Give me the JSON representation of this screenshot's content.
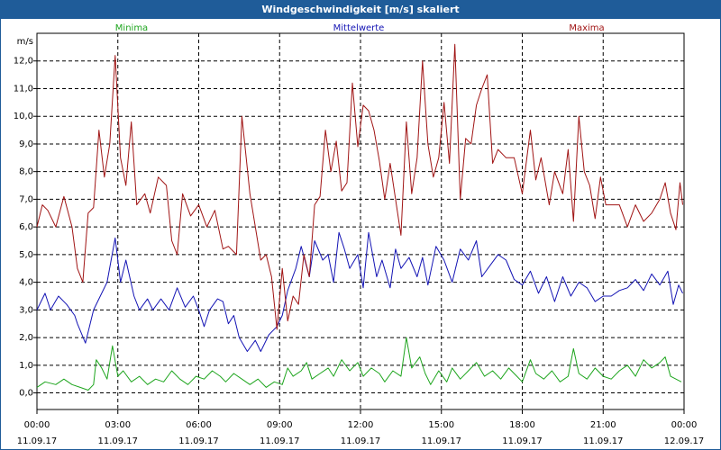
{
  "window": {
    "title": "Windgeschwindigkeit [m/s] skaliert"
  },
  "colors": {
    "minima": "#1ea51e",
    "mittelwerte": "#1414b4",
    "maxima": "#a01414",
    "title_bg": "#1f5c99"
  },
  "chart_data": {
    "type": "line",
    "title": "Windgeschwindigkeit [m/s] skaliert",
    "ylabel": "m/s",
    "xlabel": "",
    "ylim": [
      -0.6,
      13.0
    ],
    "yticks": [
      0.0,
      1.0,
      2.0,
      3.0,
      4.0,
      5.0,
      6.0,
      7.0,
      8.0,
      9.0,
      10.0,
      11.0,
      12.0
    ],
    "ytick_labels": [
      "0,0",
      "1,0",
      "2,0",
      "3,0",
      "4,0",
      "5,0",
      "6,0",
      "7,0",
      "8,0",
      "9,0",
      "10,0",
      "11,0",
      "12,0"
    ],
    "xlim": [
      0,
      24
    ],
    "xticks": [
      {
        "t": 0,
        "time": "00:00",
        "date": "11.09.17"
      },
      {
        "t": 3,
        "time": "03:00",
        "date": "11.09.17"
      },
      {
        "t": 6,
        "time": "06:00",
        "date": "11.09.17"
      },
      {
        "t": 9,
        "time": "09:00",
        "date": "11.09.17"
      },
      {
        "t": 12,
        "time": "12:00",
        "date": "11.09.17"
      },
      {
        "t": 15,
        "time": "15:00",
        "date": "11.09.17"
      },
      {
        "t": 18,
        "time": "18:00",
        "date": "11.09.17"
      },
      {
        "t": 21,
        "time": "21:00",
        "date": "11.09.17"
      },
      {
        "t": 24,
        "time": "00:00",
        "date": "12.09.17"
      }
    ],
    "grid": true,
    "legend": "top-center",
    "series": [
      {
        "name": "Minima",
        "color": "#1ea51e",
        "points": [
          [
            0,
            0.2
          ],
          [
            0.3,
            0.4
          ],
          [
            0.7,
            0.3
          ],
          [
            1.0,
            0.5
          ],
          [
            1.3,
            0.3
          ],
          [
            1.6,
            0.2
          ],
          [
            1.9,
            0.1
          ],
          [
            2.1,
            0.3
          ],
          [
            2.2,
            1.2
          ],
          [
            2.4,
            0.9
          ],
          [
            2.6,
            0.5
          ],
          [
            2.8,
            1.7
          ],
          [
            3.0,
            0.6
          ],
          [
            3.2,
            0.8
          ],
          [
            3.5,
            0.4
          ],
          [
            3.8,
            0.6
          ],
          [
            4.1,
            0.3
          ],
          [
            4.4,
            0.5
          ],
          [
            4.7,
            0.4
          ],
          [
            5.0,
            0.8
          ],
          [
            5.3,
            0.5
          ],
          [
            5.6,
            0.3
          ],
          [
            5.9,
            0.6
          ],
          [
            6.2,
            0.5
          ],
          [
            6.5,
            0.8
          ],
          [
            6.8,
            0.6
          ],
          [
            7.0,
            0.4
          ],
          [
            7.3,
            0.7
          ],
          [
            7.6,
            0.5
          ],
          [
            7.9,
            0.3
          ],
          [
            8.2,
            0.5
          ],
          [
            8.5,
            0.2
          ],
          [
            8.8,
            0.4
          ],
          [
            9.1,
            0.3
          ],
          [
            9.3,
            0.9
          ],
          [
            9.5,
            0.6
          ],
          [
            9.8,
            0.8
          ],
          [
            10.0,
            1.1
          ],
          [
            10.2,
            0.5
          ],
          [
            10.5,
            0.7
          ],
          [
            10.8,
            0.9
          ],
          [
            11.0,
            0.6
          ],
          [
            11.3,
            1.2
          ],
          [
            11.6,
            0.8
          ],
          [
            11.9,
            1.1
          ],
          [
            12.1,
            0.6
          ],
          [
            12.4,
            0.9
          ],
          [
            12.7,
            0.7
          ],
          [
            12.9,
            0.4
          ],
          [
            13.2,
            0.8
          ],
          [
            13.5,
            0.6
          ],
          [
            13.7,
            2.0
          ],
          [
            13.9,
            0.9
          ],
          [
            14.2,
            1.3
          ],
          [
            14.4,
            0.7
          ],
          [
            14.6,
            0.3
          ],
          [
            14.9,
            0.8
          ],
          [
            15.2,
            0.4
          ],
          [
            15.4,
            0.9
          ],
          [
            15.7,
            0.5
          ],
          [
            16.0,
            0.8
          ],
          [
            16.3,
            1.1
          ],
          [
            16.6,
            0.6
          ],
          [
            16.9,
            0.8
          ],
          [
            17.2,
            0.5
          ],
          [
            17.5,
            0.9
          ],
          [
            17.8,
            0.6
          ],
          [
            18.0,
            0.4
          ],
          [
            18.3,
            1.2
          ],
          [
            18.5,
            0.7
          ],
          [
            18.8,
            0.5
          ],
          [
            19.1,
            0.8
          ],
          [
            19.4,
            0.4
          ],
          [
            19.7,
            0.6
          ],
          [
            19.9,
            1.6
          ],
          [
            20.1,
            0.7
          ],
          [
            20.4,
            0.5
          ],
          [
            20.7,
            0.9
          ],
          [
            21.0,
            0.6
          ],
          [
            21.3,
            0.5
          ],
          [
            21.6,
            0.8
          ],
          [
            21.9,
            1.0
          ],
          [
            22.2,
            0.6
          ],
          [
            22.5,
            1.2
          ],
          [
            22.8,
            0.9
          ],
          [
            23.1,
            1.1
          ],
          [
            23.3,
            1.3
          ],
          [
            23.5,
            0.6
          ],
          [
            23.7,
            0.5
          ],
          [
            23.9,
            0.4
          ]
        ]
      },
      {
        "name": "Mittelwerte",
        "color": "#1414b4",
        "points": [
          [
            0,
            3.0
          ],
          [
            0.3,
            3.6
          ],
          [
            0.5,
            3.0
          ],
          [
            0.8,
            3.5
          ],
          [
            1.1,
            3.2
          ],
          [
            1.4,
            2.8
          ],
          [
            1.5,
            2.5
          ],
          [
            1.8,
            1.8
          ],
          [
            2.1,
            3.0
          ],
          [
            2.4,
            3.6
          ],
          [
            2.6,
            4.0
          ],
          [
            2.9,
            5.6
          ],
          [
            3.1,
            4.0
          ],
          [
            3.3,
            4.8
          ],
          [
            3.6,
            3.5
          ],
          [
            3.8,
            3.0
          ],
          [
            4.1,
            3.4
          ],
          [
            4.3,
            3.0
          ],
          [
            4.6,
            3.4
          ],
          [
            4.9,
            3.0
          ],
          [
            5.2,
            3.8
          ],
          [
            5.5,
            3.1
          ],
          [
            5.8,
            3.5
          ],
          [
            6.0,
            3.0
          ],
          [
            6.2,
            2.4
          ],
          [
            6.4,
            3.0
          ],
          [
            6.7,
            3.4
          ],
          [
            6.9,
            3.3
          ],
          [
            7.1,
            2.5
          ],
          [
            7.3,
            2.8
          ],
          [
            7.5,
            2.0
          ],
          [
            7.8,
            1.5
          ],
          [
            8.1,
            1.9
          ],
          [
            8.3,
            1.5
          ],
          [
            8.6,
            2.1
          ],
          [
            8.9,
            2.4
          ],
          [
            9.1,
            2.8
          ],
          [
            9.3,
            3.7
          ],
          [
            9.6,
            4.5
          ],
          [
            9.8,
            5.3
          ],
          [
            10.1,
            4.2
          ],
          [
            10.3,
            5.5
          ],
          [
            10.6,
            4.8
          ],
          [
            10.8,
            5.0
          ],
          [
            11.0,
            4.0
          ],
          [
            11.2,
            5.8
          ],
          [
            11.4,
            5.2
          ],
          [
            11.6,
            4.5
          ],
          [
            11.9,
            5.0
          ],
          [
            12.1,
            3.8
          ],
          [
            12.3,
            5.8
          ],
          [
            12.6,
            4.2
          ],
          [
            12.8,
            4.8
          ],
          [
            13.1,
            3.8
          ],
          [
            13.3,
            5.2
          ],
          [
            13.5,
            4.5
          ],
          [
            13.8,
            4.9
          ],
          [
            14.1,
            4.2
          ],
          [
            14.3,
            4.9
          ],
          [
            14.5,
            3.9
          ],
          [
            14.8,
            5.3
          ],
          [
            15.1,
            4.8
          ],
          [
            15.4,
            4.0
          ],
          [
            15.7,
            5.2
          ],
          [
            16.0,
            4.8
          ],
          [
            16.3,
            5.5
          ],
          [
            16.5,
            4.2
          ],
          [
            16.8,
            4.6
          ],
          [
            17.1,
            5.0
          ],
          [
            17.4,
            4.8
          ],
          [
            17.7,
            4.1
          ],
          [
            18.0,
            3.9
          ],
          [
            18.3,
            4.4
          ],
          [
            18.6,
            3.6
          ],
          [
            18.9,
            4.2
          ],
          [
            19.2,
            3.3
          ],
          [
            19.5,
            4.2
          ],
          [
            19.8,
            3.5
          ],
          [
            20.1,
            4.0
          ],
          [
            20.4,
            3.8
          ],
          [
            20.7,
            3.3
          ],
          [
            21.0,
            3.5
          ],
          [
            21.3,
            3.5
          ],
          [
            21.6,
            3.7
          ],
          [
            21.9,
            3.8
          ],
          [
            22.2,
            4.1
          ],
          [
            22.5,
            3.7
          ],
          [
            22.8,
            4.3
          ],
          [
            23.1,
            3.9
          ],
          [
            23.4,
            4.4
          ],
          [
            23.6,
            3.2
          ],
          [
            23.8,
            3.9
          ],
          [
            23.95,
            3.6
          ]
        ]
      },
      {
        "name": "Maxima",
        "color": "#a01414",
        "points": [
          [
            0,
            6.0
          ],
          [
            0.2,
            6.8
          ],
          [
            0.4,
            6.6
          ],
          [
            0.7,
            6.0
          ],
          [
            1.0,
            7.1
          ],
          [
            1.3,
            6.0
          ],
          [
            1.5,
            4.5
          ],
          [
            1.7,
            4.0
          ],
          [
            1.9,
            6.5
          ],
          [
            2.1,
            6.7
          ],
          [
            2.3,
            9.5
          ],
          [
            2.5,
            7.8
          ],
          [
            2.7,
            9.0
          ],
          [
            2.9,
            12.2
          ],
          [
            3.1,
            8.5
          ],
          [
            3.3,
            7.5
          ],
          [
            3.5,
            9.8
          ],
          [
            3.7,
            6.8
          ],
          [
            4.0,
            7.2
          ],
          [
            4.2,
            6.5
          ],
          [
            4.5,
            7.8
          ],
          [
            4.8,
            7.5
          ],
          [
            5.0,
            5.5
          ],
          [
            5.2,
            5.0
          ],
          [
            5.4,
            7.2
          ],
          [
            5.7,
            6.4
          ],
          [
            6.0,
            6.8
          ],
          [
            6.3,
            6.0
          ],
          [
            6.6,
            6.6
          ],
          [
            6.9,
            5.2
          ],
          [
            7.1,
            5.3
          ],
          [
            7.4,
            5.0
          ],
          [
            7.6,
            10.0
          ],
          [
            7.9,
            7.2
          ],
          [
            8.1,
            6.0
          ],
          [
            8.3,
            4.8
          ],
          [
            8.5,
            5.0
          ],
          [
            8.7,
            4.2
          ],
          [
            8.9,
            2.3
          ],
          [
            9.1,
            4.5
          ],
          [
            9.3,
            2.6
          ],
          [
            9.5,
            3.5
          ],
          [
            9.7,
            3.2
          ],
          [
            9.9,
            5.0
          ],
          [
            10.1,
            4.2
          ],
          [
            10.3,
            6.8
          ],
          [
            10.5,
            7.1
          ],
          [
            10.7,
            9.5
          ],
          [
            10.9,
            8.0
          ],
          [
            11.1,
            9.1
          ],
          [
            11.3,
            7.3
          ],
          [
            11.5,
            7.6
          ],
          [
            11.7,
            11.2
          ],
          [
            11.9,
            8.9
          ],
          [
            12.1,
            10.4
          ],
          [
            12.3,
            10.2
          ],
          [
            12.5,
            9.5
          ],
          [
            12.7,
            8.4
          ],
          [
            12.9,
            7.0
          ],
          [
            13.1,
            8.3
          ],
          [
            13.3,
            7.0
          ],
          [
            13.5,
            5.7
          ],
          [
            13.7,
            9.8
          ],
          [
            13.9,
            7.2
          ],
          [
            14.1,
            8.5
          ],
          [
            14.3,
            12.0
          ],
          [
            14.5,
            9.0
          ],
          [
            14.7,
            7.8
          ],
          [
            14.9,
            8.5
          ],
          [
            15.1,
            10.5
          ],
          [
            15.3,
            8.3
          ],
          [
            15.5,
            12.6
          ],
          [
            15.7,
            7.0
          ],
          [
            15.9,
            9.2
          ],
          [
            16.1,
            9.0
          ],
          [
            16.3,
            10.4
          ],
          [
            16.5,
            11.0
          ],
          [
            16.7,
            11.5
          ],
          [
            16.9,
            8.3
          ],
          [
            17.1,
            8.8
          ],
          [
            17.4,
            8.5
          ],
          [
            17.7,
            8.5
          ],
          [
            18.0,
            7.2
          ],
          [
            18.3,
            9.5
          ],
          [
            18.5,
            7.7
          ],
          [
            18.7,
            8.5
          ],
          [
            19.0,
            6.8
          ],
          [
            19.2,
            8.0
          ],
          [
            19.5,
            7.2
          ],
          [
            19.7,
            8.8
          ],
          [
            19.9,
            6.2
          ],
          [
            20.1,
            10.0
          ],
          [
            20.3,
            8.0
          ],
          [
            20.5,
            7.5
          ],
          [
            20.7,
            6.3
          ],
          [
            20.9,
            7.8
          ],
          [
            21.1,
            6.8
          ],
          [
            21.3,
            6.8
          ],
          [
            21.6,
            6.8
          ],
          [
            21.9,
            6.0
          ],
          [
            22.2,
            6.8
          ],
          [
            22.5,
            6.2
          ],
          [
            22.8,
            6.5
          ],
          [
            23.1,
            7.0
          ],
          [
            23.3,
            7.6
          ],
          [
            23.5,
            6.5
          ],
          [
            23.7,
            5.9
          ],
          [
            23.85,
            7.6
          ],
          [
            23.95,
            6.8
          ]
        ]
      }
    ]
  }
}
